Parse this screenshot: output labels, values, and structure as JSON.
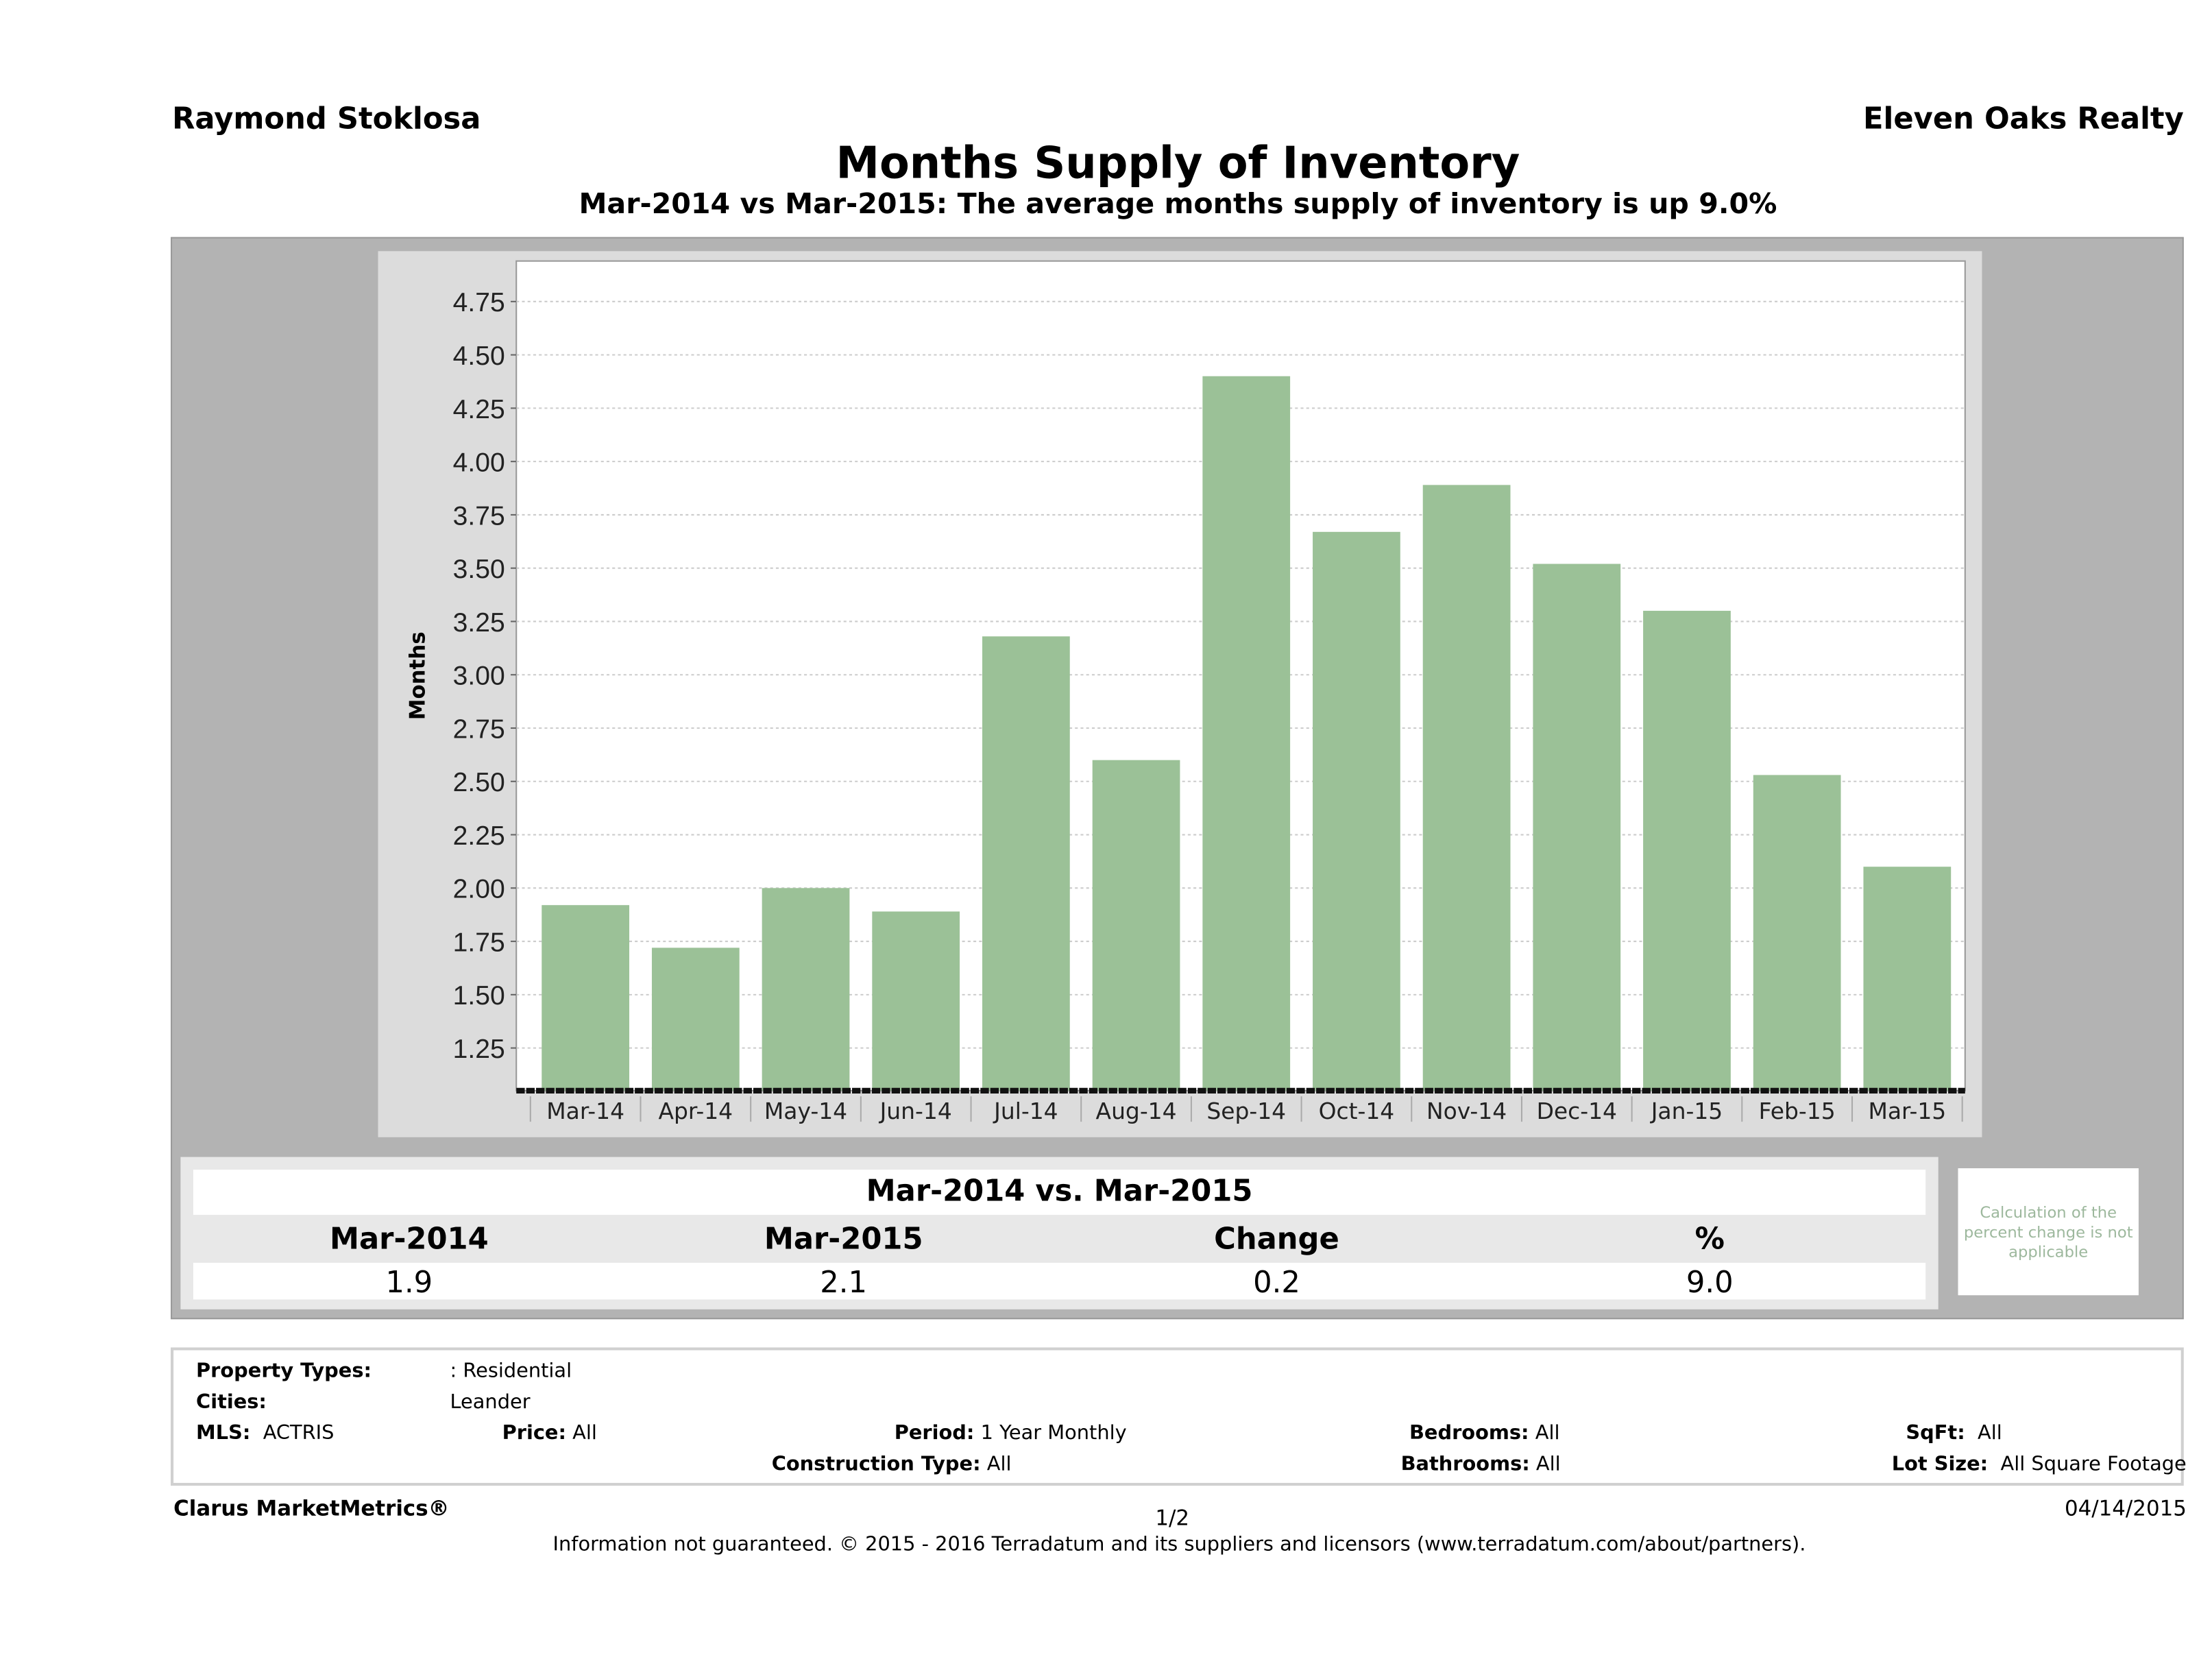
{
  "header": {
    "agent": "Raymond Stoklosa",
    "company": "Eleven Oaks Realty",
    "title": "Months Supply of Inventory",
    "subtitle": "Mar-2014 vs Mar-2015: The average months supply of inventory is up 9.0%"
  },
  "chart_data": {
    "type": "bar",
    "ylabel": "Months",
    "xlabel": "",
    "categories": [
      "Mar-14",
      "Apr-14",
      "May-14",
      "Jun-14",
      "Jul-14",
      "Aug-14",
      "Sep-14",
      "Oct-14",
      "Nov-14",
      "Dec-14",
      "Jan-15",
      "Feb-15",
      "Mar-15"
    ],
    "values": [
      1.92,
      1.72,
      2.0,
      1.89,
      3.18,
      2.6,
      4.4,
      3.67,
      3.89,
      3.52,
      3.3,
      2.53,
      2.1
    ],
    "ylim": [
      1.05,
      4.94
    ],
    "yticks": [
      "1.25",
      "1.50",
      "1.75",
      "2.00",
      "2.25",
      "2.50",
      "2.75",
      "3.00",
      "3.25",
      "3.50",
      "3.75",
      "4.00",
      "4.25",
      "4.50",
      "4.75"
    ],
    "grid": true,
    "bar_color": "#9bc197"
  },
  "comparison": {
    "heading": "Mar-2014 vs. Mar-2015",
    "columns": [
      "Mar-2014",
      "Mar-2015",
      "Change",
      "%"
    ],
    "values": [
      "1.9",
      "2.1",
      "0.2",
      "9.0"
    ],
    "note": "Calculation of the percent change is not applicable"
  },
  "filters": {
    "property_types_label": "Property Types:",
    "property_types": ": Residential",
    "cities_label": "Cities:",
    "cities": "Leander",
    "mls_label": "MLS:",
    "mls": "ACTRIS",
    "price_label": "Price:",
    "price": "All",
    "period_label": "Period:",
    "period": "1 Year Monthly",
    "bedrooms_label": "Bedrooms:",
    "bedrooms": "All",
    "sqft_label": "SqFt:",
    "sqft": "All",
    "construction_label": "Construction Type:",
    "construction": "All",
    "bathrooms_label": "Bathrooms:",
    "bathrooms": "All",
    "lotsize_label": "Lot Size:",
    "lotsize": "All Square Footage"
  },
  "footer": {
    "brand": "Clarus MarketMetrics®",
    "page": "1/2",
    "date": "04/14/2015",
    "disclaimer": "Information not guaranteed. © 2015 - 2016 Terradatum and its suppliers and licensors (www.terradatum.com/about/partners)."
  }
}
